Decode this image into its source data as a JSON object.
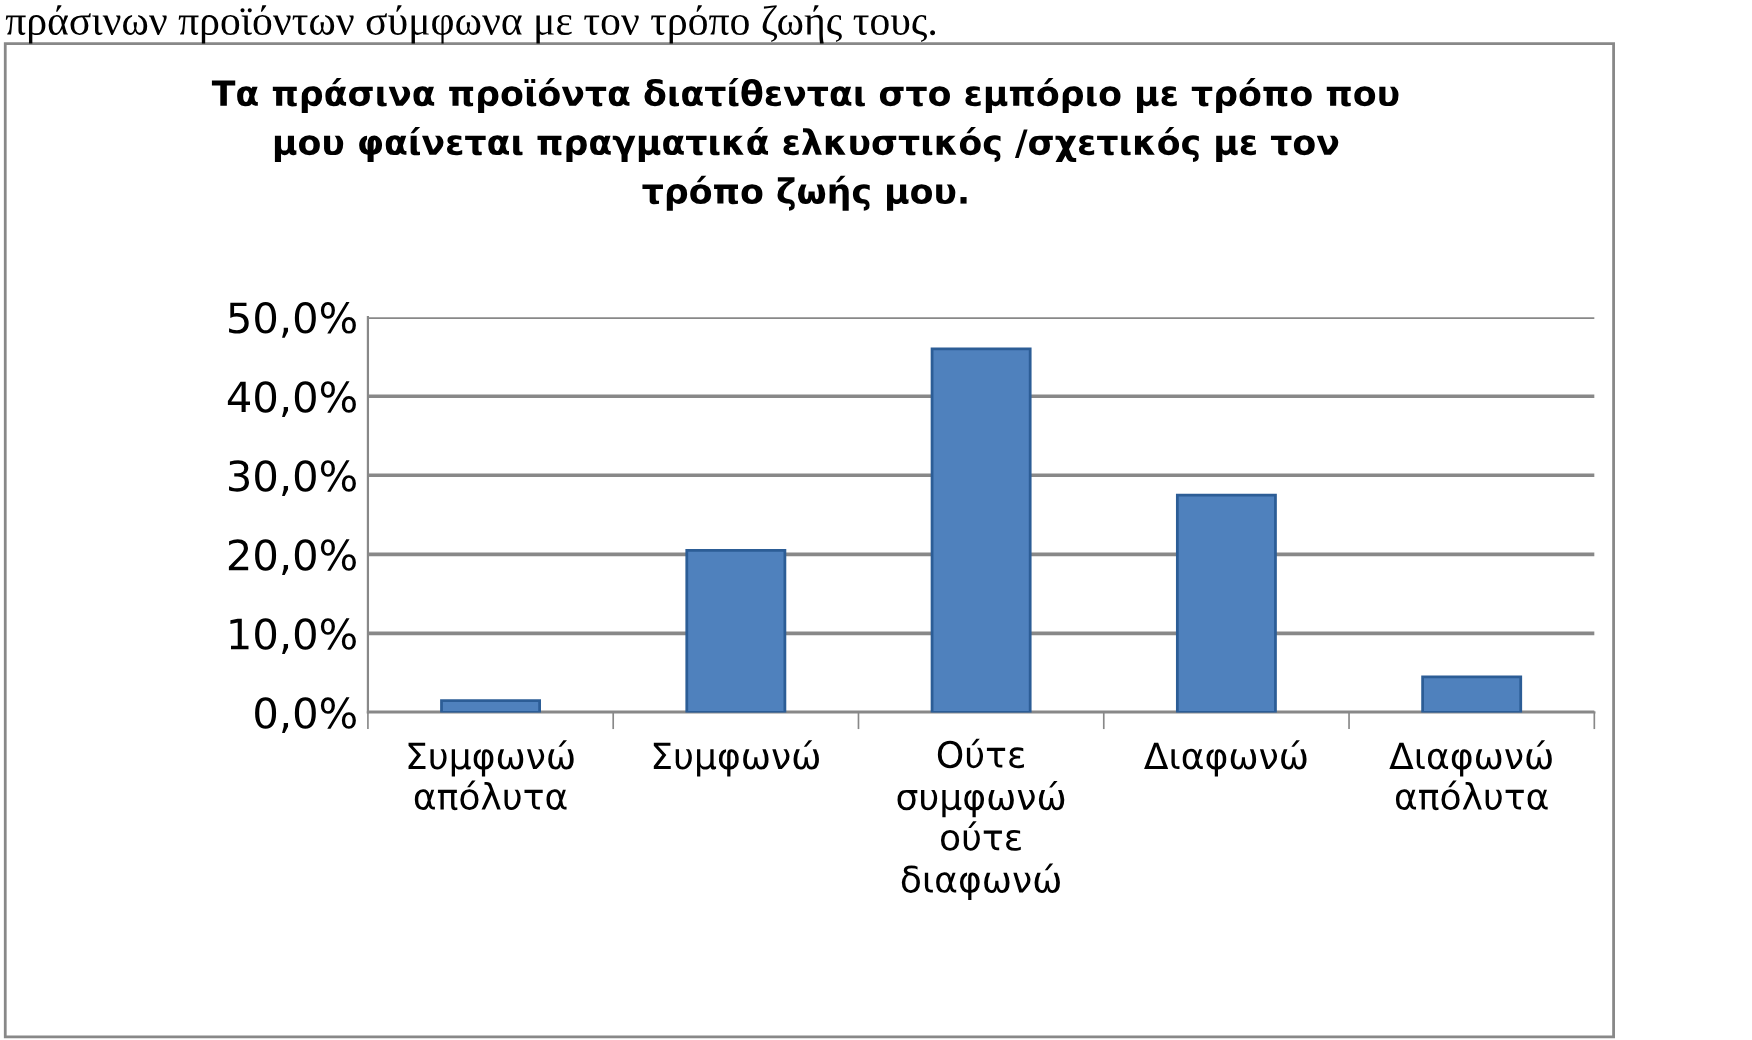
{
  "chart_data": {
    "type": "bar",
    "title": "Τα πράσινα προϊόντα διατίθενται στο εμπόριο με τρόπο που\nμου φαίνεται πραγματικά ελκυστικός /σχετικός με τον\nτρόπο ζωής μου.",
    "annotations": [
      "πράσινων προϊόντων σύμφωνα με τον τρόπο ζωής τους."
    ],
    "categories": [
      "Συμφωνώ\nαπόλυτα",
      "Συμφωνώ",
      "Ούτε\nσυμφωνώ\nούτε\nδιαφωνώ",
      "Διαφωνώ",
      "Διαφωνώ\nαπόλυτα"
    ],
    "values": [
      1.5,
      20.5,
      46,
      27.5,
      4.5
    ],
    "color": "#4f81bd",
    "ylim": [
      0,
      50
    ],
    "yticks": [
      {
        "value": 0,
        "label": "0,0%"
      },
      {
        "value": 10,
        "label": "10,0%"
      },
      {
        "value": 20,
        "label": "20,0%"
      },
      {
        "value": 30,
        "label": "30,0%"
      },
      {
        "value": 40,
        "label": "40,0%"
      },
      {
        "value": 50,
        "label": "50,0%"
      }
    ],
    "grid": "y",
    "legend": false
  }
}
